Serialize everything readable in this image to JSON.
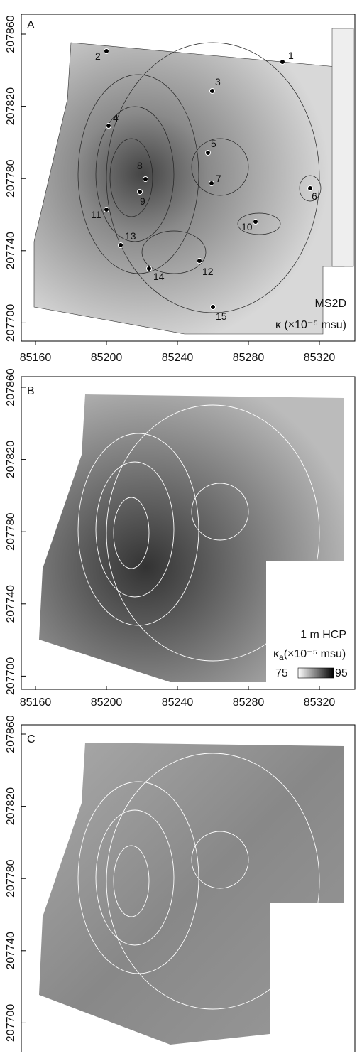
{
  "panels": [
    {
      "label": "A",
      "yticks": [
        207700,
        207740,
        207780,
        207820,
        207860
      ],
      "xticks": [
        85160,
        85200,
        85240,
        85280,
        85320
      ],
      "points": [
        "1",
        "2",
        "3",
        "4",
        "5",
        "6",
        "7",
        "8",
        "9",
        "10",
        "11",
        "12",
        "13",
        "14",
        "15"
      ],
      "title": "MS2D",
      "unit": "κ (×10⁻⁵ msu)"
    },
    {
      "label": "B",
      "yticks": [
        207700,
        207740,
        207780,
        207820,
        207860
      ],
      "xticks": [
        85160,
        85200,
        85240,
        85280,
        85320
      ],
      "title": "1 m HCP",
      "unit_symbol": "κ",
      "unit_subscript": "a",
      "unit_text": "(×10⁻⁵ msu)",
      "colorbar": [
        75,
        95
      ]
    },
    {
      "label": "C",
      "yticks": [
        207700,
        207740,
        207780,
        207820,
        207860
      ]
    }
  ]
}
